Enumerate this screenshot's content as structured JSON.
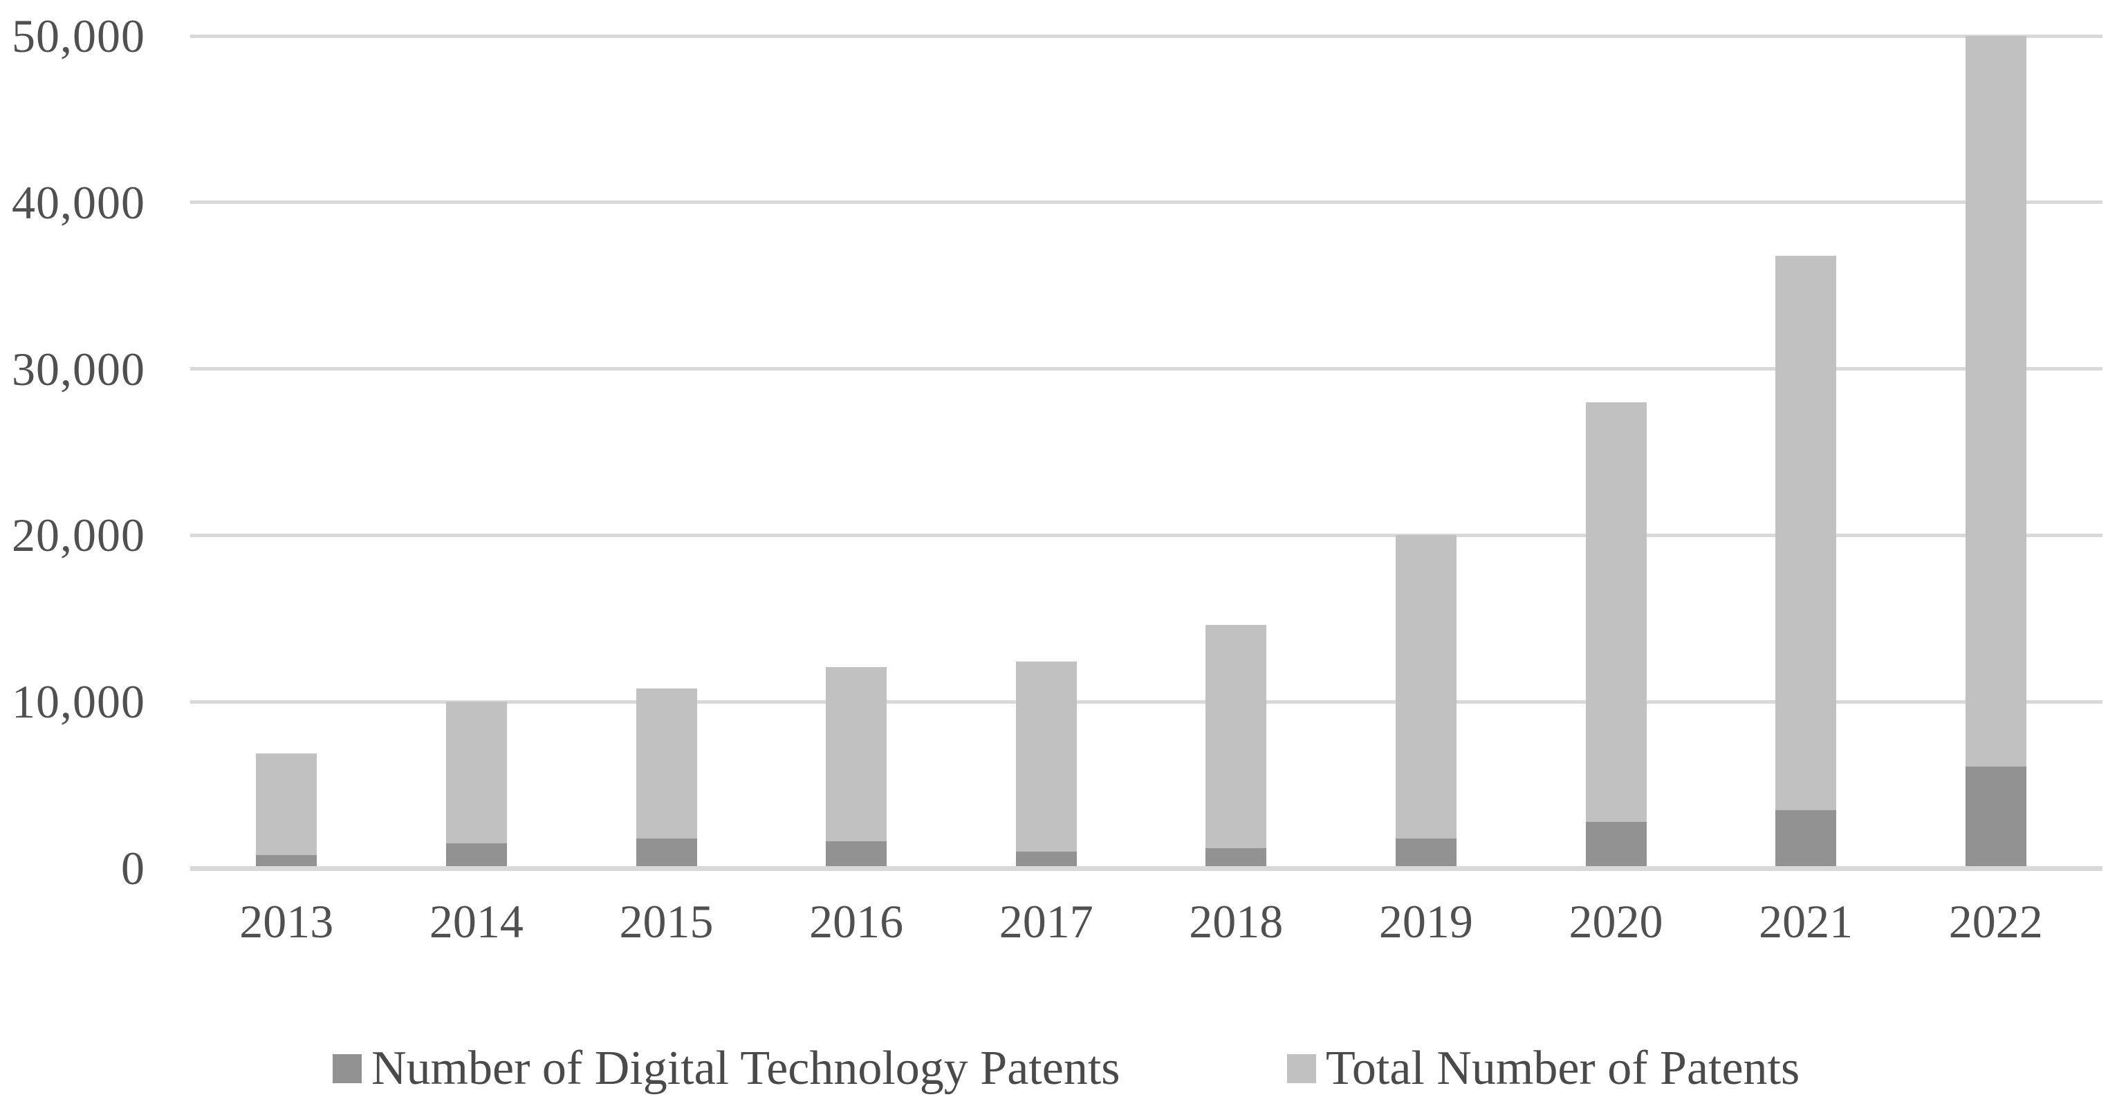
{
  "chart_data": {
    "type": "bar",
    "stacked": true,
    "title": "",
    "xlabel": "",
    "ylabel": "",
    "categories": [
      "2013",
      "2014",
      "2015",
      "2016",
      "2017",
      "2018",
      "2019",
      "2020",
      "2021",
      "2022"
    ],
    "series": [
      {
        "name": "Number of Digital Technology Patents",
        "color": "#929292",
        "values": [
          800,
          1500,
          1800,
          1600,
          1000,
          1200,
          1800,
          2800,
          3500,
          6100
        ]
      },
      {
        "name": "Total Number of Patents",
        "color": "#c1c1c1",
        "values": [
          6100,
          8500,
          9000,
          10500,
          11400,
          13400,
          18200,
          25200,
          33300,
          43900
        ]
      }
    ],
    "bar_top_totals": [
      6900,
      10000,
      10800,
      12100,
      12400,
      14600,
      20000,
      28000,
      36800,
      50000
    ],
    "y_axis": {
      "min": 0,
      "max": 50000,
      "tick_interval": 10000,
      "tick_labels": [
        "0",
        "10,000",
        "20,000",
        "30,000",
        "40,000",
        "50,000"
      ]
    },
    "grid": true,
    "legend_position": "bottom"
  },
  "colors": {
    "gridline": "#d9d9d9",
    "axis_line": "#d9d9d9",
    "tick_text": "#505050",
    "legend_text": "#4a4a4a",
    "background": "#ffffff"
  }
}
